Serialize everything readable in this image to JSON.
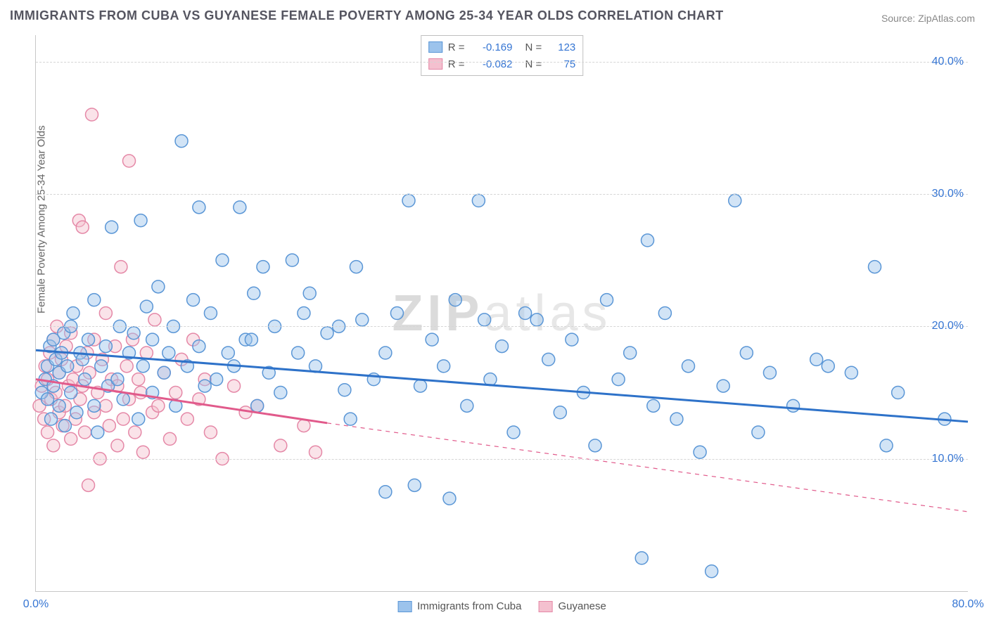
{
  "title": "IMMIGRANTS FROM CUBA VS GUYANESE FEMALE POVERTY AMONG 25-34 YEAR OLDS CORRELATION CHART",
  "source": "Source: ZipAtlas.com",
  "watermark": {
    "bold": "ZIP",
    "rest": "atlas"
  },
  "ylabel": "Female Poverty Among 25-34 Year Olds",
  "chart": {
    "type": "scatter",
    "xlim": [
      0,
      80
    ],
    "ylim": [
      0,
      42
    ],
    "xticks": [
      0,
      80
    ],
    "xtick_labels": [
      "0.0%",
      "80.0%"
    ],
    "yticks": [
      10,
      20,
      30,
      40
    ],
    "ytick_labels": [
      "10.0%",
      "20.0%",
      "30.0%",
      "40.0%"
    ],
    "grid_color": "#d5d5d5",
    "background_color": "#ffffff",
    "axis_color": "#c8c8c8",
    "marker_radius": 9,
    "marker_opacity": 0.45,
    "series": [
      {
        "name": "Immigrants from Cuba",
        "key": "cuba",
        "fill": "#9cc3ec",
        "stroke": "#5a96d6",
        "line_color": "#2e72c9",
        "R": "-0.169",
        "N": "123",
        "trend": {
          "y_start": 18.2,
          "y_end": 12.8,
          "x_extent": 80
        },
        "points": [
          [
            0.5,
            15
          ],
          [
            0.8,
            16
          ],
          [
            1,
            14.5
          ],
          [
            1,
            17
          ],
          [
            1.2,
            18.5
          ],
          [
            1.3,
            13
          ],
          [
            1.5,
            19
          ],
          [
            1.5,
            15.5
          ],
          [
            1.7,
            17.5
          ],
          [
            2,
            16.5
          ],
          [
            2,
            14
          ],
          [
            2.2,
            18
          ],
          [
            2.4,
            19.5
          ],
          [
            2.5,
            12.5
          ],
          [
            2.7,
            17
          ],
          [
            3,
            15
          ],
          [
            3,
            20
          ],
          [
            3.2,
            21
          ],
          [
            3.5,
            13.5
          ],
          [
            3.8,
            18
          ],
          [
            4,
            17.5
          ],
          [
            4.2,
            16
          ],
          [
            4.5,
            19
          ],
          [
            5,
            14
          ],
          [
            5,
            22
          ],
          [
            5.3,
            12
          ],
          [
            5.6,
            17
          ],
          [
            6,
            18.5
          ],
          [
            6.2,
            15.5
          ],
          [
            6.5,
            27.5
          ],
          [
            7,
            16
          ],
          [
            7.2,
            20
          ],
          [
            7.5,
            14.5
          ],
          [
            8,
            18
          ],
          [
            8.4,
            19.5
          ],
          [
            8.8,
            13
          ],
          [
            9,
            28
          ],
          [
            9.2,
            17
          ],
          [
            9.5,
            21.5
          ],
          [
            10,
            15
          ],
          [
            10,
            19
          ],
          [
            10.5,
            23
          ],
          [
            11,
            16.5
          ],
          [
            11.4,
            18
          ],
          [
            11.8,
            20
          ],
          [
            12,
            14
          ],
          [
            12.5,
            34
          ],
          [
            13,
            17
          ],
          [
            13.5,
            22
          ],
          [
            14,
            29
          ],
          [
            14,
            18.5
          ],
          [
            14.5,
            15.5
          ],
          [
            15,
            21
          ],
          [
            15.5,
            16
          ],
          [
            16,
            25
          ],
          [
            16.5,
            18
          ],
          [
            17,
            17
          ],
          [
            17.5,
            29
          ],
          [
            18,
            19
          ],
          [
            18.5,
            19
          ],
          [
            18.7,
            22.5
          ],
          [
            19,
            14
          ],
          [
            19.5,
            24.5
          ],
          [
            20,
            16.5
          ],
          [
            20.5,
            20
          ],
          [
            21,
            15
          ],
          [
            22,
            25
          ],
          [
            22.5,
            18
          ],
          [
            23,
            21
          ],
          [
            23.5,
            22.5
          ],
          [
            24,
            17
          ],
          [
            25,
            19.5
          ],
          [
            26,
            20
          ],
          [
            26.5,
            15.2
          ],
          [
            27,
            13
          ],
          [
            27.5,
            24.5
          ],
          [
            28,
            20.5
          ],
          [
            29,
            16
          ],
          [
            30,
            18
          ],
          [
            30,
            7.5
          ],
          [
            31,
            21
          ],
          [
            32,
            29.5
          ],
          [
            32.5,
            8
          ],
          [
            33,
            15.5
          ],
          [
            34,
            19
          ],
          [
            35,
            17
          ],
          [
            35.5,
            7
          ],
          [
            36,
            22
          ],
          [
            37,
            14
          ],
          [
            38,
            29.5
          ],
          [
            38.5,
            20.5
          ],
          [
            39,
            16
          ],
          [
            40,
            18.5
          ],
          [
            41,
            12
          ],
          [
            42,
            21
          ],
          [
            43,
            20.5
          ],
          [
            44,
            17.5
          ],
          [
            45,
            13.5
          ],
          [
            46,
            19
          ],
          [
            47,
            15
          ],
          [
            48,
            11
          ],
          [
            49,
            22
          ],
          [
            50,
            16
          ],
          [
            51,
            18
          ],
          [
            52,
            2.5
          ],
          [
            52.5,
            26.5
          ],
          [
            53,
            14
          ],
          [
            54,
            21
          ],
          [
            55,
            13
          ],
          [
            56,
            17
          ],
          [
            57,
            10.5
          ],
          [
            58,
            1.5
          ],
          [
            59,
            15.5
          ],
          [
            60,
            29.5
          ],
          [
            61,
            18
          ],
          [
            62,
            12
          ],
          [
            63,
            16.5
          ],
          [
            65,
            14
          ],
          [
            67,
            17.5
          ],
          [
            68,
            17
          ],
          [
            70,
            16.5
          ],
          [
            72,
            24.5
          ],
          [
            73,
            11
          ],
          [
            74,
            15
          ],
          [
            78,
            13
          ]
        ]
      },
      {
        "name": "Guyanese",
        "key": "guyanese",
        "fill": "#f4c0cf",
        "stroke": "#e588a7",
        "line_color": "#e15a8b",
        "R": "-0.082",
        "N": "75",
        "trend": {
          "y_start": 16.0,
          "y_end": 12.7,
          "x_extent": 25,
          "dash_to": 80,
          "dash_y_end": 6.0
        },
        "points": [
          [
            0.3,
            14
          ],
          [
            0.5,
            15.5
          ],
          [
            0.7,
            13
          ],
          [
            0.8,
            17
          ],
          [
            1,
            16
          ],
          [
            1,
            12
          ],
          [
            1.2,
            18
          ],
          [
            1.3,
            14.5
          ],
          [
            1.5,
            19
          ],
          [
            1.5,
            11
          ],
          [
            1.7,
            15
          ],
          [
            1.8,
            20
          ],
          [
            2,
            13.5
          ],
          [
            2,
            16.5
          ],
          [
            2.2,
            17.5
          ],
          [
            2.3,
            12.5
          ],
          [
            2.5,
            14
          ],
          [
            2.6,
            18.5
          ],
          [
            2.8,
            15.5
          ],
          [
            3,
            11.5
          ],
          [
            3,
            19.5
          ],
          [
            3.2,
            16
          ],
          [
            3.4,
            13
          ],
          [
            3.5,
            17
          ],
          [
            3.7,
            28
          ],
          [
            3.8,
            14.5
          ],
          [
            4,
            15.5
          ],
          [
            4,
            27.5
          ],
          [
            4.2,
            12
          ],
          [
            4.4,
            18
          ],
          [
            4.5,
            8
          ],
          [
            4.6,
            16.5
          ],
          [
            4.8,
            36
          ],
          [
            5,
            13.5
          ],
          [
            5,
            19
          ],
          [
            5.3,
            15
          ],
          [
            5.5,
            10
          ],
          [
            5.7,
            17.5
          ],
          [
            6,
            14
          ],
          [
            6,
            21
          ],
          [
            6.3,
            12.5
          ],
          [
            6.5,
            16
          ],
          [
            6.8,
            18.5
          ],
          [
            7,
            11
          ],
          [
            7,
            15.5
          ],
          [
            7.3,
            24.5
          ],
          [
            7.5,
            13
          ],
          [
            7.8,
            17
          ],
          [
            8,
            14.5
          ],
          [
            8,
            32.5
          ],
          [
            8.3,
            19
          ],
          [
            8.5,
            12
          ],
          [
            8.8,
            16
          ],
          [
            9,
            15
          ],
          [
            9.2,
            10.5
          ],
          [
            9.5,
            18
          ],
          [
            10,
            13.5
          ],
          [
            10.2,
            20.5
          ],
          [
            10.5,
            14
          ],
          [
            11,
            16.5
          ],
          [
            11.5,
            11.5
          ],
          [
            12,
            15
          ],
          [
            12.5,
            17.5
          ],
          [
            13,
            13
          ],
          [
            13.5,
            19
          ],
          [
            14,
            14.5
          ],
          [
            14.5,
            16
          ],
          [
            15,
            12
          ],
          [
            16,
            10
          ],
          [
            17,
            15.5
          ],
          [
            18,
            13.5
          ],
          [
            19,
            14
          ],
          [
            21,
            11
          ],
          [
            23,
            12.5
          ],
          [
            24,
            10.5
          ]
        ]
      }
    ]
  },
  "bottom_legend": [
    {
      "label": "Immigrants from Cuba",
      "fill": "#9cc3ec",
      "stroke": "#5a96d6"
    },
    {
      "label": "Guyanese",
      "fill": "#f4c0cf",
      "stroke": "#e588a7"
    }
  ]
}
